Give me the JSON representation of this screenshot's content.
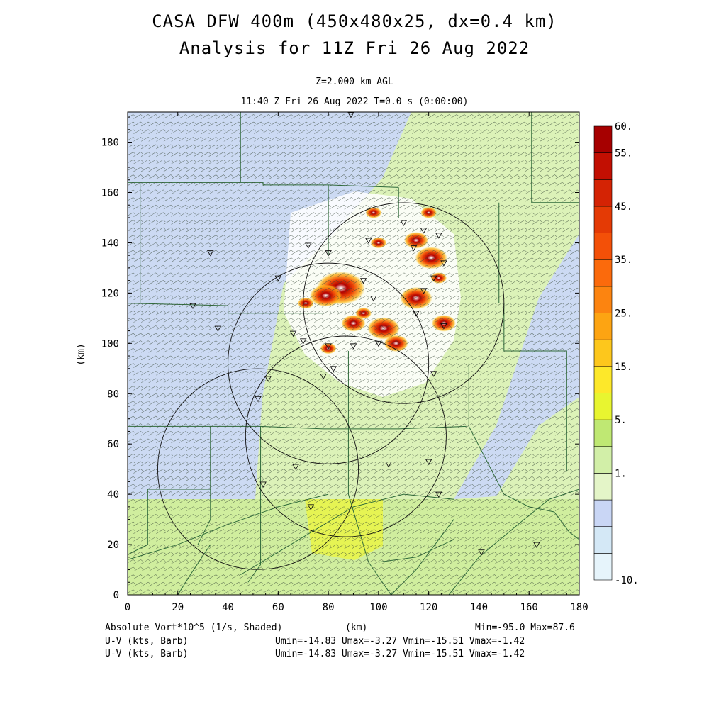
{
  "title_line1": "CASA DFW 400m (450x480x25, dx=0.4 km)",
  "title_line2": "Analysis for 11Z Fri 26 Aug 2022",
  "level_label": "Z=2.000 km AGL",
  "time_label": "11:40 Z Fri 26 Aug 2022    T=0.0 s (0:00:00)",
  "x_axis_label": "(km)",
  "y_axis_label": "(km)",
  "x_ticks": [
    0,
    20,
    40,
    60,
    80,
    100,
    120,
    140,
    160,
    180
  ],
  "y_ticks": [
    0,
    20,
    40,
    60,
    80,
    100,
    120,
    140,
    160,
    180
  ],
  "x_range": [
    0,
    180
  ],
  "y_range": [
    0,
    192
  ],
  "colorbar": {
    "labels": [
      "60.",
      "55.",
      "45.",
      "35.",
      "25.",
      "15.",
      "5.",
      "1.",
      "-10."
    ],
    "colors": [
      "#e6f4fb",
      "#d4e8f6",
      "#c9d6f5",
      "#e4f5c8",
      "#d2efa8",
      "#bfe873",
      "#e8f530",
      "#fde82a",
      "#fdc71c",
      "#fda412",
      "#fc8410",
      "#fb6a0c",
      "#f35008",
      "#e43a05",
      "#d42304",
      "#c20f02",
      "#a60000"
    ]
  },
  "footer": {
    "field_label": "Absolute Vort*10^5 (1/s, Shaded)",
    "x_unit": "(km)",
    "minmax": "Min=-95.0 Max=87.6",
    "barb1_label": "U-V (kts, Barb)",
    "barb1_stats": "Umin=-14.83 Umax=-3.27 Vmin=-15.51 Vmax=-1.42",
    "barb2_label": "U-V (kts, Barb)",
    "barb2_stats": "Umin=-14.83 Umax=-3.27 Vmin=-15.51 Vmax=-1.42"
  },
  "radar_rings": [
    {
      "x": 110,
      "y": 116,
      "r": 40
    },
    {
      "x": 80,
      "y": 92,
      "r": 40
    },
    {
      "x": 87,
      "y": 63,
      "r": 40
    },
    {
      "x": 52,
      "y": 50,
      "r": 40
    }
  ],
  "radar_sites": [
    [
      89,
      191
    ],
    [
      33,
      136
    ],
    [
      26,
      115
    ],
    [
      36,
      106
    ],
    [
      72,
      139
    ],
    [
      60,
      126
    ],
    [
      80,
      136
    ],
    [
      96,
      141
    ],
    [
      110,
      148
    ],
    [
      114,
      138
    ],
    [
      118,
      145
    ],
    [
      124,
      143
    ],
    [
      126,
      132
    ],
    [
      122,
      126
    ],
    [
      118,
      121
    ],
    [
      115,
      112
    ],
    [
      94,
      125
    ],
    [
      98,
      118
    ],
    [
      126,
      107
    ],
    [
      122,
      88
    ],
    [
      100,
      100
    ],
    [
      90,
      99
    ],
    [
      80,
      99
    ],
    [
      70,
      101
    ],
    [
      66,
      104
    ],
    [
      78,
      87
    ],
    [
      82,
      90
    ],
    [
      56,
      86
    ],
    [
      52,
      78
    ],
    [
      67,
      51
    ],
    [
      104,
      52
    ],
    [
      120,
      53
    ],
    [
      54,
      44
    ],
    [
      73,
      35
    ],
    [
      124,
      40
    ],
    [
      141,
      17
    ],
    [
      163,
      20
    ]
  ],
  "county_lines": [
    [
      [
        45,
        192
      ],
      [
        45,
        170
      ],
      [
        45,
        164
      ]
    ],
    [
      [
        0,
        164
      ],
      [
        54,
        164
      ],
      [
        54,
        163
      ],
      [
        80,
        163
      ],
      [
        108,
        162
      ]
    ],
    [
      [
        80,
        163
      ],
      [
        80,
        148
      ],
      [
        80,
        135
      ]
    ],
    [
      [
        108,
        162
      ],
      [
        108,
        150
      ]
    ],
    [
      [
        0,
        116
      ],
      [
        40,
        115
      ],
      [
        40,
        112
      ],
      [
        78,
        112
      ]
    ],
    [
      [
        5,
        164
      ],
      [
        5,
        116
      ],
      [
        0,
        116
      ]
    ],
    [
      [
        40,
        115
      ],
      [
        40,
        92
      ],
      [
        40,
        67
      ]
    ],
    [
      [
        0,
        67
      ],
      [
        33,
        67
      ],
      [
        40,
        67
      ],
      [
        53,
        67
      ],
      [
        78,
        66
      ],
      [
        108,
        66
      ],
      [
        135,
        67
      ]
    ],
    [
      [
        33,
        67
      ],
      [
        33,
        42
      ],
      [
        33,
        30
      ],
      [
        28,
        20
      ]
    ],
    [
      [
        8,
        42
      ],
      [
        33,
        42
      ]
    ],
    [
      [
        8,
        42
      ],
      [
        8,
        20
      ],
      [
        0,
        16
      ]
    ],
    [
      [
        88,
        97
      ],
      [
        88,
        67
      ],
      [
        88,
        40
      ],
      [
        96,
        13
      ]
    ],
    [
      [
        53,
        67
      ],
      [
        53,
        42
      ],
      [
        53,
        30
      ],
      [
        53,
        12
      ],
      [
        48,
        5
      ]
    ],
    [
      [
        136,
        92
      ],
      [
        136,
        67
      ],
      [
        150,
        40
      ]
    ],
    [
      [
        150,
        116
      ],
      [
        150,
        97
      ],
      [
        156,
        97
      ],
      [
        175,
        97
      ],
      [
        175,
        49
      ]
    ],
    [
      [
        161,
        192
      ],
      [
        161,
        156
      ],
      [
        180,
        156
      ]
    ],
    [
      [
        148,
        156
      ],
      [
        148,
        116
      ]
    ],
    [
      [
        45,
        8
      ],
      [
        90,
        35
      ],
      [
        110,
        40
      ],
      [
        130,
        38
      ]
    ],
    [
      [
        0,
        14
      ],
      [
        20,
        20
      ],
      [
        40,
        28
      ],
      [
        60,
        35
      ],
      [
        80,
        40
      ]
    ],
    [
      [
        100,
        13
      ],
      [
        115,
        15
      ],
      [
        130,
        22
      ]
    ],
    [
      [
        96,
        13
      ],
      [
        105,
        0
      ]
    ],
    [
      [
        128,
        0
      ],
      [
        140,
        15
      ],
      [
        158,
        30
      ],
      [
        168,
        38
      ],
      [
        180,
        42
      ]
    ],
    [
      [
        105,
        0
      ],
      [
        115,
        10
      ],
      [
        124,
        22
      ],
      [
        130,
        30
      ]
    ],
    [
      [
        150,
        40
      ],
      [
        160,
        35
      ],
      [
        170,
        33
      ],
      [
        176,
        25
      ],
      [
        180,
        22
      ]
    ],
    [
      [
        20,
        0
      ],
      [
        25,
        8
      ],
      [
        33,
        20
      ]
    ]
  ],
  "wind_barb_direction": "southwest",
  "storm_cells": [
    [
      85,
      122,
      6
    ],
    [
      79,
      119,
      4
    ],
    [
      102,
      106,
      4
    ],
    [
      107,
      100,
      3
    ],
    [
      115,
      118,
      4
    ],
    [
      121,
      134,
      4
    ],
    [
      115,
      141,
      3
    ],
    [
      120,
      152,
      2
    ],
    [
      100,
      140,
      2
    ],
    [
      90,
      108,
      3
    ],
    [
      71,
      116,
      2
    ],
    [
      80,
      98,
      2
    ],
    [
      124,
      126,
      2
    ],
    [
      126,
      108,
      3
    ],
    [
      98,
      152,
      2
    ],
    [
      94,
      112,
      2
    ]
  ]
}
